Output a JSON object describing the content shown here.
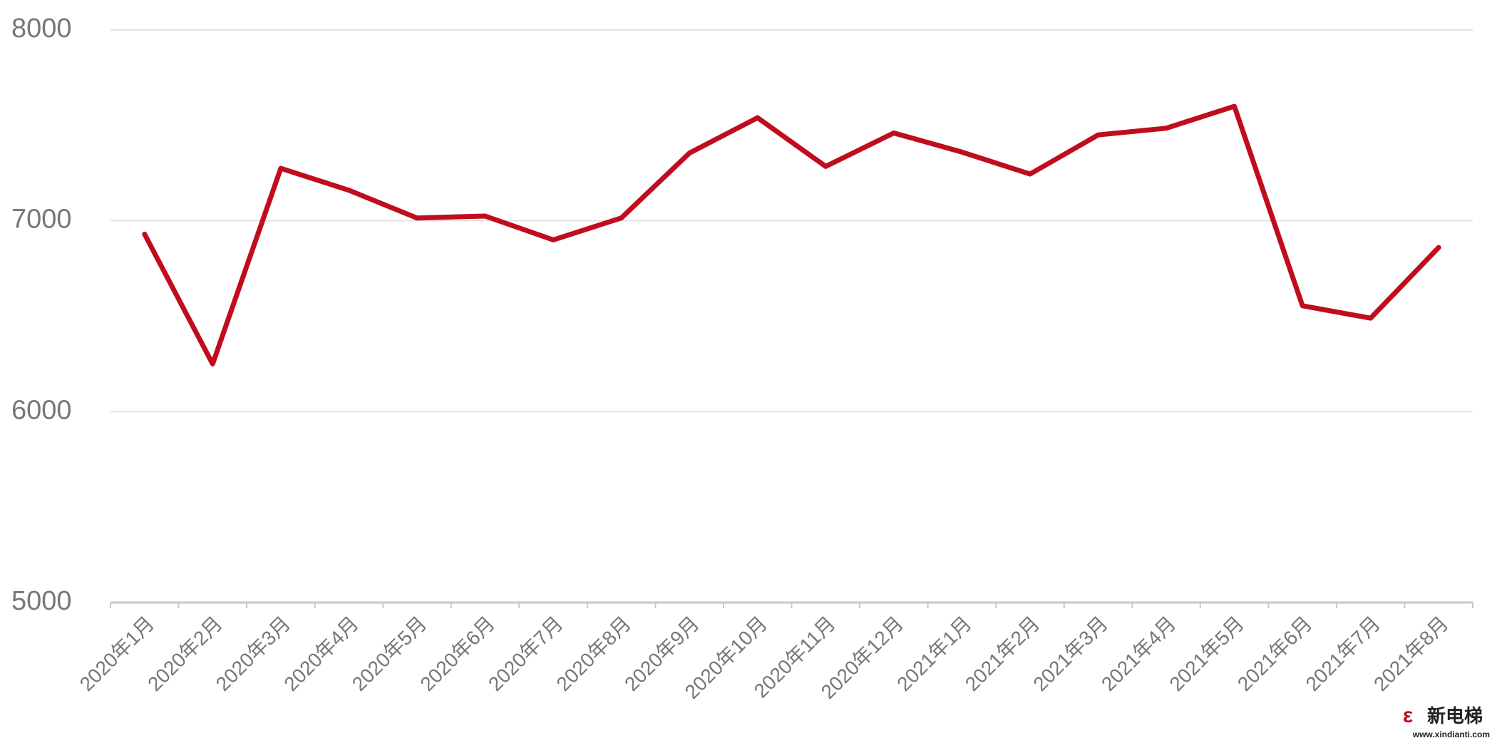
{
  "chart_data": {
    "type": "line",
    "categories": [
      "2020年1月",
      "2020年2月",
      "2020年3月",
      "2020年4月",
      "2020年5月",
      "2020年6月",
      "2020年7月",
      "2020年8月",
      "2020年9月",
      "2020年10月",
      "2020年11月",
      "2020年12月",
      "2021年1月",
      "2021年2月",
      "2021年3月",
      "2021年4月",
      "2021年5月",
      "2021年6月",
      "2021年7月",
      "2021年8月"
    ],
    "values": [
      6930,
      6250,
      7275,
      7160,
      7015,
      7025,
      6900,
      7015,
      7355,
      7540,
      7285,
      7460,
      7360,
      7245,
      7450,
      7485,
      7600,
      6555,
      6490,
      6860
    ],
    "color": "#c00d1e",
    "ylim": [
      5000,
      8000
    ],
    "yticks": [
      5000,
      6000,
      7000,
      8000
    ],
    "grid": true,
    "watermark": {
      "name": "新电梯",
      "url": "www.xindianti.com"
    }
  }
}
